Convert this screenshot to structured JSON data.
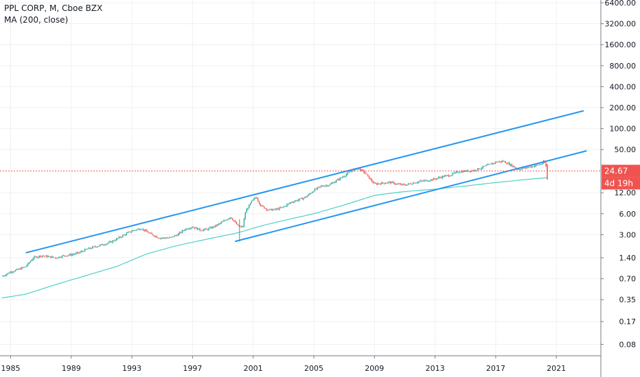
{
  "legend": {
    "symbol_line": "PPL CORP, M, Cboe BZX",
    "indicator_line": "MA (200, close)"
  },
  "colors": {
    "up": "#26a69a",
    "down": "#ef5350",
    "ma": "#4dd0c8",
    "trendline": "#2196f3",
    "grid": "#eef0f3",
    "price_line": "#ef5350"
  },
  "chart_data": {
    "type": "candlestick",
    "title": "PPL CORP, M, Cboe BZX",
    "y_scale": "log",
    "y_ticks": [
      {
        "value": 6400,
        "label": "6400.00"
      },
      {
        "value": 3200,
        "label": "3200.00"
      },
      {
        "value": 1600,
        "label": "1600.00"
      },
      {
        "value": 800,
        "label": "800.00"
      },
      {
        "value": 400,
        "label": "400.00"
      },
      {
        "value": 200,
        "label": "200.00"
      },
      {
        "value": 100,
        "label": "100.00"
      },
      {
        "value": 50,
        "label": "50.00"
      },
      {
        "value": 12,
        "label": "12.00"
      },
      {
        "value": 6,
        "label": "6.00"
      },
      {
        "value": 3,
        "label": "3.00"
      },
      {
        "value": 1.4,
        "label": "1.40"
      },
      {
        "value": 0.7,
        "label": "0.70"
      },
      {
        "value": 0.35,
        "label": "0.35"
      },
      {
        "value": 0.17,
        "label": "0.17"
      },
      {
        "value": 0.08,
        "label": "0.08"
      }
    ],
    "x_ticks": [
      {
        "value": 1985,
        "label": "1985"
      },
      {
        "value": 1989,
        "label": "1989"
      },
      {
        "value": 1993,
        "label": "1993"
      },
      {
        "value": 1997,
        "label": "1997"
      },
      {
        "value": 2001,
        "label": "2001"
      },
      {
        "value": 2005,
        "label": "2005"
      },
      {
        "value": 2009,
        "label": "2009"
      },
      {
        "value": 2013,
        "label": "2013"
      },
      {
        "value": 2017,
        "label": "2017"
      },
      {
        "value": 2021,
        "label": "2021"
      }
    ],
    "x_range": [
      1984.3,
      2023.8
    ],
    "price_path": [
      [
        1984.4,
        0.75
      ],
      [
        1985.0,
        0.88
      ],
      [
        1985.5,
        0.95
      ],
      [
        1986.0,
        1.05
      ],
      [
        1986.5,
        1.4
      ],
      [
        1987.0,
        1.5
      ],
      [
        1987.5,
        1.45
      ],
      [
        1988.0,
        1.4
      ],
      [
        1988.5,
        1.5
      ],
      [
        1989.0,
        1.55
      ],
      [
        1989.5,
        1.65
      ],
      [
        1990.0,
        1.85
      ],
      [
        1990.5,
        2.0
      ],
      [
        1991.0,
        2.15
      ],
      [
        1991.5,
        2.3
      ],
      [
        1992.0,
        2.6
      ],
      [
        1992.5,
        3.0
      ],
      [
        1993.0,
        3.4
      ],
      [
        1993.6,
        3.7
      ],
      [
        1994.2,
        3.1
      ],
      [
        1994.8,
        2.7
      ],
      [
        1995.5,
        2.7
      ],
      [
        1996.0,
        3.0
      ],
      [
        1996.5,
        3.6
      ],
      [
        1997.0,
        3.9
      ],
      [
        1997.5,
        3.5
      ],
      [
        1998.0,
        3.6
      ],
      [
        1998.5,
        4.0
      ],
      [
        1999.0,
        4.6
      ],
      [
        1999.5,
        5.4
      ],
      [
        2000.0,
        4.0
      ],
      [
        2000.3,
        3.8
      ],
      [
        2000.5,
        6.5
      ],
      [
        2000.9,
        9.0
      ],
      [
        2001.2,
        10.5
      ],
      [
        2001.5,
        7.8
      ],
      [
        2002.0,
        6.8
      ],
      [
        2002.5,
        6.9
      ],
      [
        2003.0,
        7.5
      ],
      [
        2003.5,
        8.8
      ],
      [
        2004.0,
        9.5
      ],
      [
        2004.5,
        10.5
      ],
      [
        2005.0,
        13.0
      ],
      [
        2005.5,
        15.0
      ],
      [
        2006.0,
        15.5
      ],
      [
        2006.5,
        18.0
      ],
      [
        2007.0,
        21.0
      ],
      [
        2007.5,
        25.0
      ],
      [
        2007.9,
        27.0
      ],
      [
        2008.3,
        24.0
      ],
      [
        2008.7,
        19.0
      ],
      [
        2009.0,
        16.0
      ],
      [
        2009.5,
        16.5
      ],
      [
        2010.0,
        17.0
      ],
      [
        2010.5,
        16.0
      ],
      [
        2011.0,
        15.5
      ],
      [
        2011.5,
        16.5
      ],
      [
        2012.0,
        17.5
      ],
      [
        2012.5,
        18.0
      ],
      [
        2013.0,
        19.0
      ],
      [
        2013.5,
        20.5
      ],
      [
        2014.0,
        21.5
      ],
      [
        2014.5,
        24.0
      ],
      [
        2015.0,
        24.5
      ],
      [
        2015.5,
        25.0
      ],
      [
        2016.0,
        27.0
      ],
      [
        2016.5,
        30.0
      ],
      [
        2017.0,
        33.0
      ],
      [
        2017.5,
        34.0
      ],
      [
        2018.0,
        30.0
      ],
      [
        2018.5,
        26.0
      ],
      [
        2019.0,
        27.5
      ],
      [
        2019.5,
        29.0
      ],
      [
        2020.0,
        31.0
      ],
      [
        2020.2,
        34.0
      ],
      [
        2020.4,
        24.67
      ]
    ],
    "ma_path": [
      [
        1984.4,
        0.37
      ],
      [
        1986.0,
        0.42
      ],
      [
        1988.0,
        0.58
      ],
      [
        1990.0,
        0.78
      ],
      [
        1992.0,
        1.05
      ],
      [
        1994.0,
        1.6
      ],
      [
        1996.0,
        2.1
      ],
      [
        1998.0,
        2.6
      ],
      [
        2000.0,
        3.2
      ],
      [
        2001.5,
        4.0
      ],
      [
        2003.0,
        4.8
      ],
      [
        2005.0,
        6.0
      ],
      [
        2007.0,
        8.0
      ],
      [
        2009.0,
        11.0
      ],
      [
        2011.0,
        12.5
      ],
      [
        2013.0,
        13.5
      ],
      [
        2015.0,
        15.0
      ],
      [
        2017.0,
        16.8
      ],
      [
        2019.0,
        18.6
      ],
      [
        2020.4,
        19.8
      ]
    ],
    "trendlines": [
      {
        "from": [
          1986.0,
          1.65
        ],
        "to": [
          2022.8,
          180
        ]
      },
      {
        "from": [
          1999.8,
          2.4
        ],
        "to": [
          2023.0,
          48
        ]
      }
    ],
    "last_price": {
      "value": 24.67,
      "label": "24.67",
      "countdown": "4d 19h"
    }
  }
}
